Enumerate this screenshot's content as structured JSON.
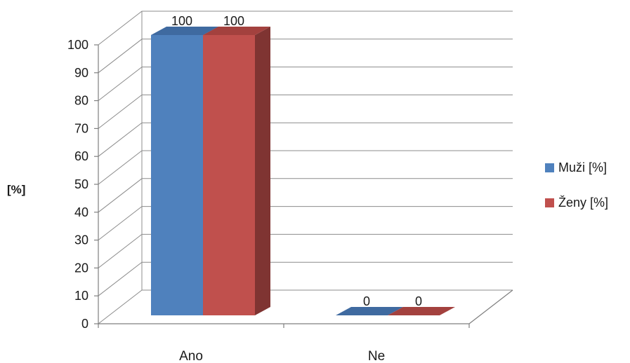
{
  "chart_data": {
    "type": "bar",
    "title": "",
    "xlabel": "",
    "ylabel": "[%]",
    "categories": [
      "Ano",
      "Ne"
    ],
    "series": [
      {
        "name": "Muži [%]",
        "values": [
          100,
          0
        ],
        "color": "#4f81bd",
        "side_color": "#3a6191",
        "top_color": "#3f6aa0"
      },
      {
        "name": "Ženy [%]",
        "values": [
          100,
          0
        ],
        "color": "#c0504d",
        "side_color": "#7f3432",
        "top_color": "#a3413e"
      }
    ],
    "data_labels": [
      [
        "100",
        "0"
      ],
      [
        "100",
        "0"
      ]
    ],
    "ylim": [
      0,
      100
    ],
    "yticks": [
      0,
      10,
      20,
      30,
      40,
      50,
      60,
      70,
      80,
      90,
      100
    ],
    "grid": true,
    "legend": "right",
    "style": "3d-clustered-column"
  }
}
